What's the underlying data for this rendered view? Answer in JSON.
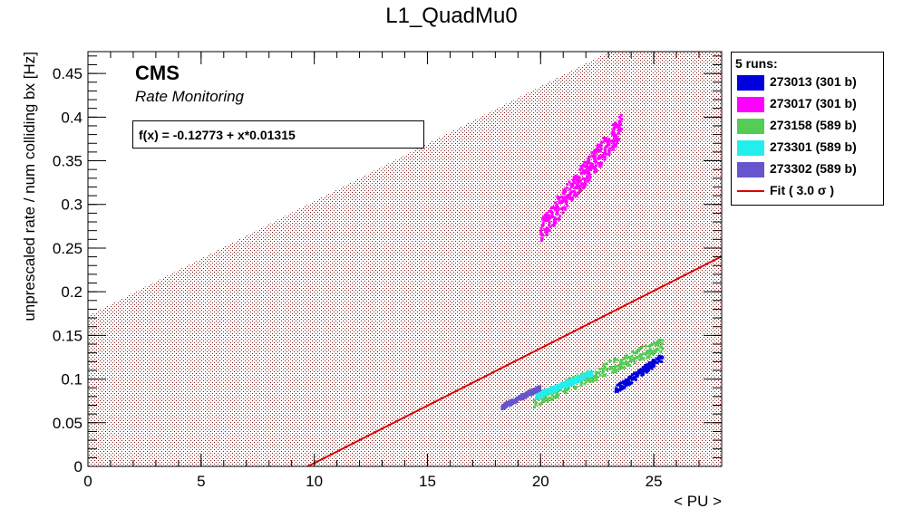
{
  "chart_data": {
    "type": "scatter",
    "title": "L1_QuadMu0",
    "xlabel": "< PU >",
    "ylabel": "unprescaled rate / num colliding bx [Hz]",
    "xlim": [
      0,
      28
    ],
    "ylim": [
      0,
      0.475
    ],
    "x_ticks": [
      0,
      5,
      10,
      15,
      20,
      25
    ],
    "x_tick_labels": [
      "0",
      "5",
      "10",
      "15",
      "20",
      "25"
    ],
    "y_ticks": [
      0,
      0.05,
      0.1,
      0.15,
      0.2,
      0.25,
      0.3,
      0.35,
      0.4,
      0.45
    ],
    "y_tick_labels": [
      "0",
      "0.05",
      "0.1",
      "0.15",
      "0.2",
      "0.25",
      "0.3",
      "0.35",
      "0.4",
      "0.45"
    ],
    "annotations": {
      "cms": "CMS",
      "subtitle": "Rate Monitoring",
      "fit_formula": "f(x) = -0.12773 + x*0.01315"
    },
    "fit": {
      "intercept": -0.12773,
      "slope": 0.01315,
      "sigma_band": 3.0,
      "color": "#dd0000"
    },
    "legend": {
      "header": "5 runs:",
      "fit_label": "Fit ( 3.0 σ )",
      "placement": "right"
    },
    "series": [
      {
        "name": "273013 (301 b)",
        "color": "#0000dd",
        "x_range": [
          23.3,
          25.4
        ],
        "y_range": [
          0.087,
          0.125
        ]
      },
      {
        "name": "273017 (301 b)",
        "color": "#ff00ff",
        "x_range": [
          20.0,
          23.6
        ],
        "y_range": [
          0.27,
          0.39
        ]
      },
      {
        "name": "273158 (589 b)",
        "color": "#55cc55",
        "x_range": [
          19.7,
          25.4
        ],
        "y_range": [
          0.075,
          0.14
        ]
      },
      {
        "name": "273301 (589 b)",
        "color": "#22eeee",
        "x_range": [
          19.8,
          22.3
        ],
        "y_range": [
          0.08,
          0.107
        ]
      },
      {
        "name": "273302 (589 b)",
        "color": "#6655cc",
        "x_range": [
          18.3,
          20.0
        ],
        "y_range": [
          0.068,
          0.09
        ]
      }
    ]
  }
}
